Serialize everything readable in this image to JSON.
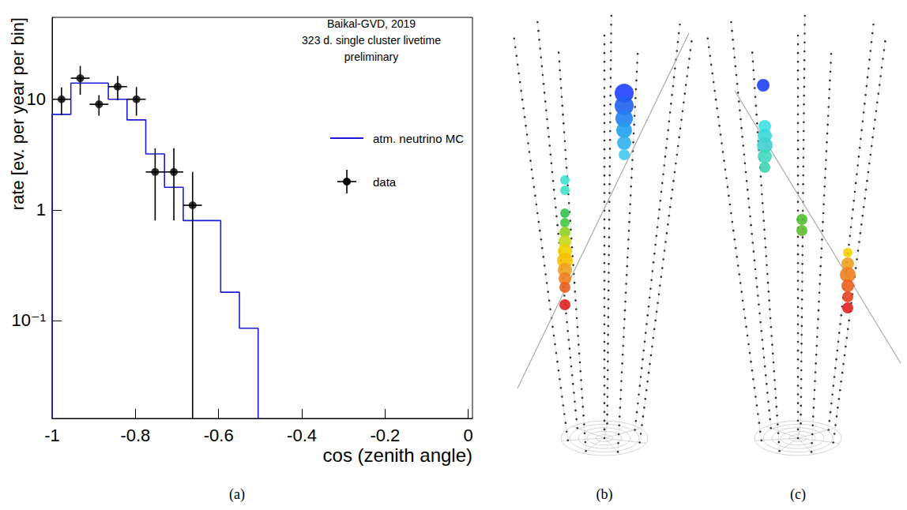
{
  "chart_data": {
    "type": "histogram",
    "annotations": [
      "Baikal-GVD, 2019",
      "323 d. single cluster livetime",
      "preliminary"
    ],
    "x_label": "cos (zenith angle)",
    "y_label": "rate [ev. per year per bin]",
    "log": "y",
    "grid": false,
    "legend": "right",
    "xlim": [
      -1,
      0.01
    ],
    "xticks": [
      -1,
      -0.8,
      -0.6,
      -0.4,
      -0.2,
      0
    ],
    "ylim": [
      0.013,
      55
    ],
    "yticks": [
      {
        "value": 0.1,
        "label": "10⁻¹"
      },
      1,
      10
    ],
    "series": [
      {
        "name": "atm. neutrino MC",
        "type": "histogram",
        "color": "#1c1cd8",
        "line_style": "solid",
        "bins": [
          -1,
          -0.955,
          -0.91,
          -0.865,
          -0.82,
          -0.775,
          -0.73,
          -0.685,
          -0.64,
          -0.595,
          -0.55,
          -0.505
        ],
        "values": [
          7.3,
          14,
          14,
          10,
          6.5,
          3.2,
          1.6,
          0.8,
          0.8,
          0.18,
          0.085
        ]
      },
      {
        "name": "data",
        "type": "scatter",
        "color": "#000000",
        "marker": "circle",
        "x": [
          -0.9775,
          -0.9325,
          -0.8875,
          -0.8425,
          -0.7975,
          -0.7525,
          -0.7075,
          -0.6625
        ],
        "values": [
          10,
          15.5,
          9,
          13,
          10,
          2.2,
          2.2,
          1.1
        ],
        "errors": [
          2.8,
          4.5,
          1.9,
          3.2,
          2.9,
          1.4,
          1.4,
          1.1
        ],
        "x_errors": [
          0.0225,
          0.0225,
          0.0225,
          0.0225,
          0.0225,
          0.0225,
          0.0225,
          0.0225
        ]
      }
    ]
  },
  "panel_labels": [
    "(a)",
    "(b)",
    "(c)"
  ]
}
